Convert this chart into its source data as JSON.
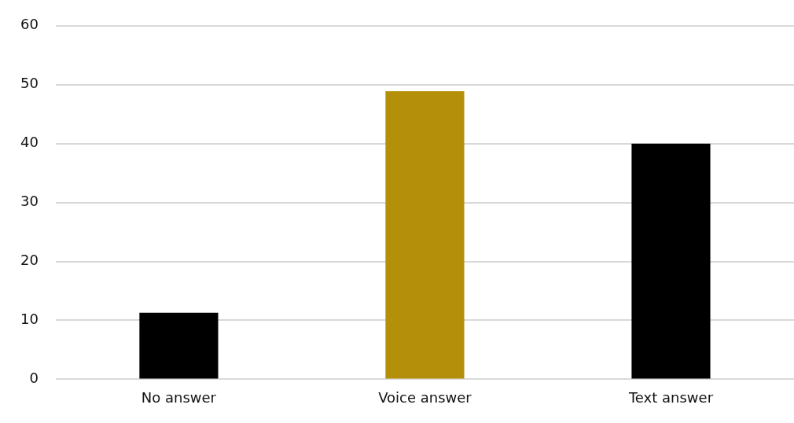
{
  "chart_data": {
    "type": "bar",
    "categories": [
      "No answer",
      "Voice answer",
      "Text answer"
    ],
    "values": [
      11.3,
      48.9,
      40
    ],
    "colors": [
      "#000000",
      "#b38f0a",
      "#000000"
    ],
    "ylim": [
      0,
      60
    ],
    "yticks": [
      0,
      10,
      20,
      30,
      40,
      50,
      60
    ],
    "grid": "y",
    "legend": false
  }
}
